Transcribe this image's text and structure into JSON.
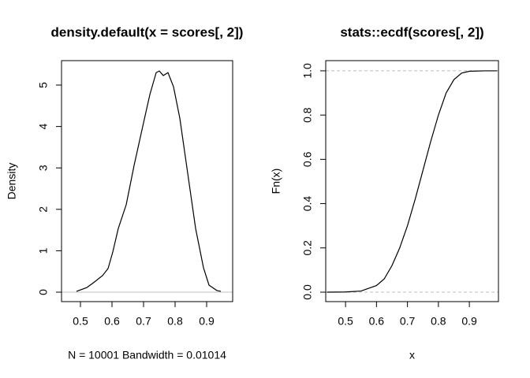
{
  "chart_data": [
    {
      "type": "line",
      "title": "density.default(x = scores[, 2])",
      "x_label": "N = 10001   Bandwidth = 0.01014",
      "y_label": "Density",
      "x": [
        0.4875,
        0.52,
        0.545,
        0.57,
        0.5875,
        0.6025,
        0.62,
        0.645,
        0.67,
        0.695,
        0.72,
        0.74,
        0.75,
        0.7625,
        0.7775,
        0.795,
        0.815,
        0.84,
        0.865,
        0.89,
        0.9075,
        0.9325,
        0.945
      ],
      "values": [
        0.02,
        0.11,
        0.25,
        0.4,
        0.57,
        0.97,
        1.54,
        2.11,
        3.06,
        3.92,
        4.77,
        5.3,
        5.34,
        5.23,
        5.3,
        4.96,
        4.2,
        2.87,
        1.54,
        0.59,
        0.17,
        0.04,
        0.02
      ],
      "color": "#000000",
      "xlim": [
        0.44,
        0.9825
      ],
      "ylim": [
        -0.228,
        5.59
      ],
      "xticks": [
        0.5,
        0.6,
        0.7,
        0.8,
        0.9
      ],
      "yticks": [
        0,
        1,
        2,
        3,
        4,
        5
      ],
      "hlines": [
        0
      ],
      "hline_color": "#bebebe",
      "hline_dashed": false
    },
    {
      "type": "line",
      "title": "stats::ecdf(scores[, 2])",
      "x_label": "x",
      "y_label": "Fn(x)",
      "x": [
        0.44,
        0.5,
        0.55,
        0.6,
        0.625,
        0.65,
        0.675,
        0.7,
        0.725,
        0.75,
        0.775,
        0.8,
        0.825,
        0.85,
        0.875,
        0.9,
        0.95,
        0.99
      ],
      "values": [
        0,
        0.001,
        0.005,
        0.03,
        0.06,
        0.12,
        0.2,
        0.3,
        0.42,
        0.55,
        0.68,
        0.8,
        0.9,
        0.96,
        0.99,
        0.998,
        1,
        1
      ],
      "color": "#000000",
      "xlim": [
        0.436,
        0.994
      ],
      "ylim": [
        -0.0427,
        1.046
      ],
      "xticks": [
        0.5,
        0.6,
        0.7,
        0.8,
        0.9
      ],
      "yticks": [
        {
          "value": 0,
          "label": "0.0"
        },
        {
          "value": 0.2,
          "label": "0.2"
        },
        {
          "value": 0.4,
          "label": "0.4"
        },
        {
          "value": 0.6,
          "label": "0.6"
        },
        {
          "value": 0.8,
          "label": "0.8"
        },
        {
          "value": 1,
          "label": "1.0"
        }
      ],
      "hlines": [
        0,
        1
      ],
      "hline_color": "#bebebe",
      "hline_dashed": true
    }
  ]
}
